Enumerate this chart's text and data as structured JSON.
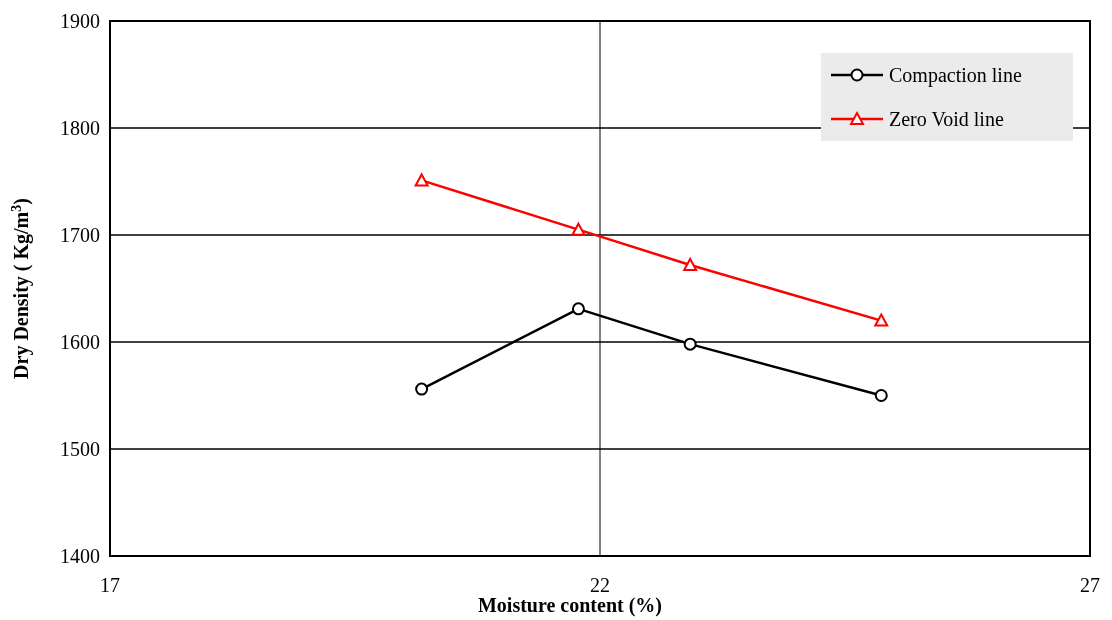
{
  "chart_data": {
    "type": "line",
    "xlabel": "Moisture content (%)",
    "ylabel": "Dry Density ( Kg/m$^{3}$)",
    "xlim": [
      17,
      27
    ],
    "xticks": [
      17,
      22,
      27
    ],
    "ylim": [
      1400,
      1900
    ],
    "yticks": [
      1400,
      1500,
      1600,
      1700,
      1800,
      1900
    ],
    "grid": "y",
    "legend": "top right",
    "ref_lines": [
      {
        "axis": "x",
        "value": 22,
        "color": "#000000"
      }
    ],
    "series": [
      {
        "name": "Compaction line",
        "color": "#000000",
        "marker": "circle",
        "x": [
          20.18,
          21.78,
          22.92,
          24.87
        ],
        "values": [
          1556,
          1631,
          1598,
          1550
        ]
      },
      {
        "name": "Zero Void line",
        "color": "#ff0000",
        "marker": "triangle",
        "x": [
          20.18,
          21.78,
          22.92,
          24.87
        ],
        "values": [
          1751,
          1705,
          1672,
          1620
        ]
      }
    ]
  }
}
